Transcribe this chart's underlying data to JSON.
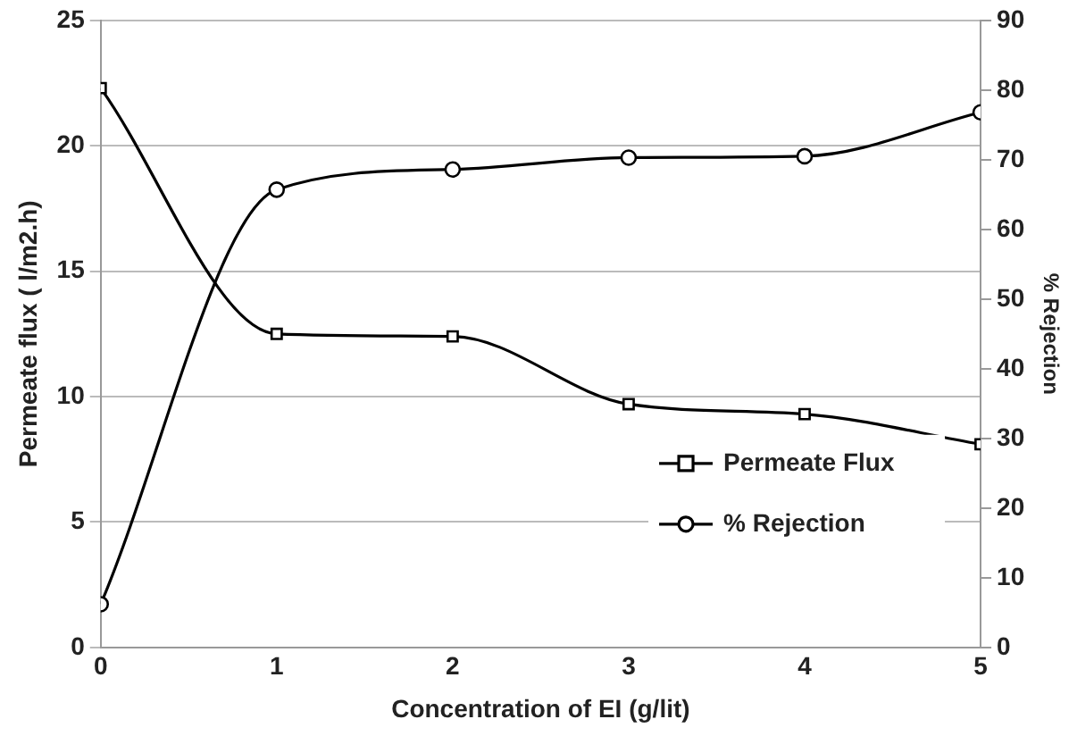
{
  "chart_data": {
    "type": "line",
    "xlabel": "Concentration of EI (g/lit)",
    "ylabel": "Permeate flux ( l/m2.h)",
    "y2label": "% Rejection",
    "x": [
      0,
      1,
      2,
      3,
      4,
      5
    ],
    "xlim": [
      0,
      5
    ],
    "xticks": [
      0,
      1,
      2,
      3,
      4,
      5
    ],
    "ylim": [
      0,
      25
    ],
    "yticks": [
      0,
      5,
      10,
      15,
      20,
      25
    ],
    "y2lim": [
      0,
      90
    ],
    "y2ticks": [
      0,
      10,
      20,
      30,
      40,
      50,
      60,
      70,
      80,
      90
    ],
    "grid": "y",
    "legend": "bottom right",
    "line_style": "solid",
    "series": [
      {
        "name": "Permeate Flux",
        "color": "#000000",
        "marker": "square",
        "values": [
          22.3,
          12.5,
          12.4,
          9.7,
          9.3,
          8.1
        ]
      },
      {
        "name": "% Rejection",
        "color": "#000000",
        "marker": "circle",
        "axis": "y2",
        "values": [
          6.2,
          65.7,
          68.6,
          70.3,
          70.5,
          76.8
        ]
      }
    ]
  }
}
